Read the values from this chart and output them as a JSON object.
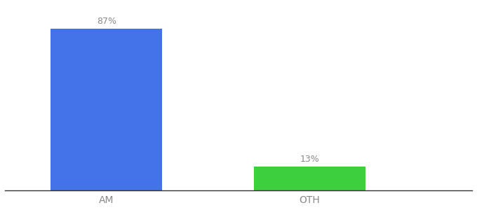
{
  "categories": [
    "AM",
    "OTH"
  ],
  "values": [
    87,
    13
  ],
  "bar_colors": [
    "#4472e8",
    "#3ecf3e"
  ],
  "bar_labels": [
    "87%",
    "13%"
  ],
  "background_color": "#ffffff",
  "ylim": [
    0,
    100
  ],
  "xlabel_fontsize": 10,
  "label_fontsize": 9,
  "bar_width": 0.55,
  "x_positions": [
    1,
    2
  ],
  "xlim": [
    0.5,
    2.8
  ]
}
